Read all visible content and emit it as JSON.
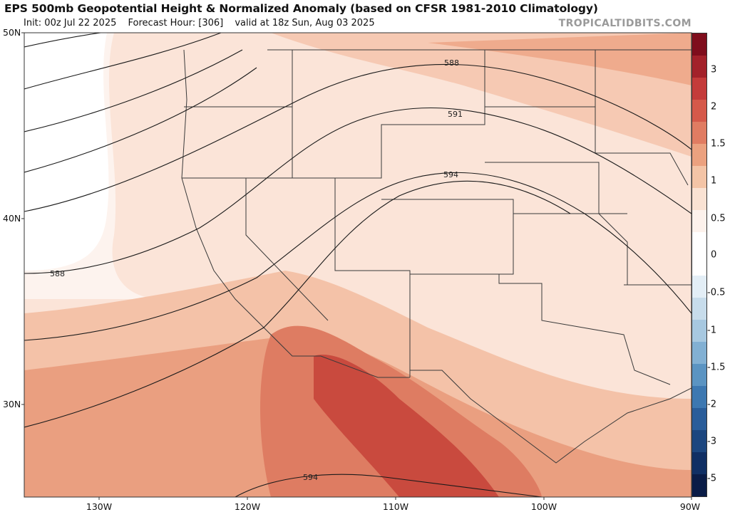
{
  "header": {
    "title": "EPS 500mb Geopotential Height & Normalized Anomaly (based on CFSR 1981-2010 Climatology)",
    "init": "Init: 00z Jul 22 2025",
    "forecast_hour": "Forecast Hour: [306]",
    "valid": "valid at 18z Sun, Aug 03 2025",
    "credit": "TROPICALTIDBITS.COM"
  },
  "map": {
    "lat_labels": [
      "50N",
      "40N",
      "30N"
    ],
    "lon_labels": [
      "130W",
      "120W",
      "110W",
      "100W",
      "90W"
    ],
    "contour_labels": [
      "588",
      "591",
      "594",
      "588",
      "594"
    ]
  },
  "colorbar": {
    "labels": [
      "3",
      "2",
      "1.5",
      "1",
      "0.5",
      "0",
      "-0.5",
      "-1",
      "-1.5",
      "-2",
      "-3",
      "-5"
    ],
    "colors": [
      "#7f0d1c",
      "#a3212a",
      "#c43b3a",
      "#d5594a",
      "#e07c62",
      "#eba17f",
      "#f3c4a6",
      "#f9e2d3",
      "#fdf2ec",
      "#ffffff",
      "#ffffff",
      "#e3eef6",
      "#c7dceb",
      "#a7c8e0",
      "#82b0d3",
      "#5b94c2",
      "#3d78b1",
      "#2a5d9a",
      "#1c467f",
      "#102f64",
      "#0a1c47"
    ]
  }
}
